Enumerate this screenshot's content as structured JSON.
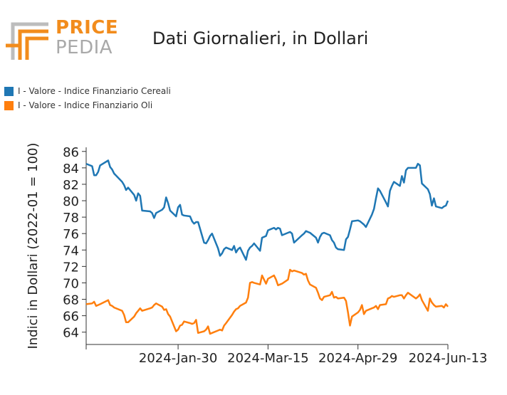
{
  "logo": {
    "word1": "PRICE",
    "word2": "PEDIA"
  },
  "title": "Dati Giornalieri, in Dollari",
  "legend": [
    {
      "label": "I - Valore - Indice Finanziario Cereali",
      "color": "#1f77b4"
    },
    {
      "label": "I - Valore - Indice Finanziario Oli",
      "color": "#ff7f0e"
    }
  ],
  "chart_data": {
    "type": "line",
    "ylabel": "Indici in Dollari (2022-01 = 100)",
    "xlabel": "",
    "ylim": [
      62.5,
      86.5
    ],
    "yticks": [
      64,
      66,
      68,
      70,
      72,
      74,
      76,
      78,
      80,
      82,
      84,
      86
    ],
    "xlim": [
      "2023-12-15",
      "2024-06-13"
    ],
    "xticks": [
      "2024-Jan-30",
      "2024-Mar-15",
      "2024-Apr-29",
      "2024-Jun-13"
    ],
    "xtick_dates": [
      "2024-01-30",
      "2024-03-15",
      "2024-04-29",
      "2024-06-13"
    ],
    "grid": false,
    "legend_position": "top-left",
    "series": [
      {
        "name": "I - Valore - Indice Finanziario Cereali",
        "color": "#1f77b4",
        "x": [
          "2023-12-15",
          "2023-12-18",
          "2023-12-19",
          "2023-12-20",
          "2023-12-21",
          "2023-12-22",
          "2023-12-26",
          "2023-12-27",
          "2023-12-28",
          "2023-12-29",
          "2024-01-02",
          "2024-01-03",
          "2024-01-04",
          "2024-01-05",
          "2024-01-08",
          "2024-01-09",
          "2024-01-10",
          "2024-01-11",
          "2024-01-12",
          "2024-01-16",
          "2024-01-17",
          "2024-01-18",
          "2024-01-19",
          "2024-01-22",
          "2024-01-23",
          "2024-01-24",
          "2024-01-25",
          "2024-01-26",
          "2024-01-29",
          "2024-01-30",
          "2024-01-31",
          "2024-02-01",
          "2024-02-02",
          "2024-02-05",
          "2024-02-06",
          "2024-02-07",
          "2024-02-08",
          "2024-02-09",
          "2024-02-12",
          "2024-02-13",
          "2024-02-14",
          "2024-02-15",
          "2024-02-16",
          "2024-02-19",
          "2024-02-20",
          "2024-02-21",
          "2024-02-22",
          "2024-02-23",
          "2024-02-26",
          "2024-02-27",
          "2024-02-28",
          "2024-02-29",
          "2024-03-01",
          "2024-03-04",
          "2024-03-05",
          "2024-03-06",
          "2024-03-07",
          "2024-03-08",
          "2024-03-11",
          "2024-03-12",
          "2024-03-13",
          "2024-03-14",
          "2024-03-15",
          "2024-03-18",
          "2024-03-19",
          "2024-03-20",
          "2024-03-21",
          "2024-03-22",
          "2024-03-25",
          "2024-03-26",
          "2024-03-27",
          "2024-03-28",
          "2024-04-01",
          "2024-04-02",
          "2024-04-03",
          "2024-04-04",
          "2024-04-05",
          "2024-04-08",
          "2024-04-09",
          "2024-04-10",
          "2024-04-11",
          "2024-04-12",
          "2024-04-15",
          "2024-04-16",
          "2024-04-17",
          "2024-04-18",
          "2024-04-19",
          "2024-04-22",
          "2024-04-23",
          "2024-04-24",
          "2024-04-25",
          "2024-04-26",
          "2024-04-29",
          "2024-04-30",
          "2024-05-01",
          "2024-05-02",
          "2024-05-03",
          "2024-05-06",
          "2024-05-07",
          "2024-05-08",
          "2024-05-09",
          "2024-05-10",
          "2024-05-13",
          "2024-05-14",
          "2024-05-15",
          "2024-05-16",
          "2024-05-17",
          "2024-05-20",
          "2024-05-21",
          "2024-05-22",
          "2024-05-23",
          "2024-05-24",
          "2024-05-28",
          "2024-05-29",
          "2024-05-30",
          "2024-05-31",
          "2024-06-03",
          "2024-06-04",
          "2024-06-05",
          "2024-06-06",
          "2024-06-07",
          "2024-06-10",
          "2024-06-11",
          "2024-06-12",
          "2024-06-13"
        ],
        "values": [
          84.5,
          84.2,
          83.1,
          83.1,
          83.5,
          84.3,
          84.9,
          84.1,
          83.8,
          83.3,
          82.3,
          81.9,
          81.3,
          81.6,
          80.7,
          80.0,
          80.9,
          80.6,
          78.8,
          78.7,
          78.5,
          77.9,
          78.5,
          78.9,
          79.2,
          80.4,
          79.7,
          78.8,
          78.1,
          79.2,
          79.5,
          78.3,
          78.2,
          78.1,
          77.5,
          77.2,
          77.4,
          77.4,
          74.9,
          74.8,
          75.2,
          75.7,
          76.0,
          74.2,
          73.3,
          73.6,
          74.1,
          74.3,
          74.0,
          74.5,
          73.7,
          74.1,
          74.3,
          72.8,
          73.9,
          74.3,
          74.5,
          74.8,
          73.9,
          75.5,
          75.6,
          75.7,
          76.4,
          76.7,
          76.5,
          76.7,
          76.6,
          75.8,
          76.1,
          76.2,
          76.0,
          74.9,
          75.8,
          76.0,
          76.3,
          76.2,
          76.1,
          75.5,
          74.9,
          75.6,
          76.0,
          76.1,
          75.8,
          75.2,
          74.9,
          74.3,
          74.1,
          74.0,
          75.3,
          75.6,
          76.5,
          77.5,
          77.6,
          77.5,
          77.3,
          77.1,
          76.8,
          78.3,
          79.0,
          80.3,
          81.5,
          81.2,
          79.8,
          79.3,
          81.2,
          81.8,
          82.3,
          81.8,
          83.0,
          82.2,
          83.7,
          84.0,
          84.0,
          84.5,
          84.3,
          82.1,
          81.4,
          80.8,
          79.4,
          80.3,
          79.3,
          79.1,
          79.3,
          79.4,
          80.0
        ]
      },
      {
        "name": "I - Valore - Indice Finanziario Oli",
        "color": "#ff7f0e",
        "x": [
          "2023-12-15",
          "2023-12-18",
          "2023-12-19",
          "2023-12-20",
          "2023-12-21",
          "2023-12-22",
          "2023-12-26",
          "2023-12-27",
          "2023-12-28",
          "2023-12-29",
          "2024-01-02",
          "2024-01-03",
          "2024-01-04",
          "2024-01-05",
          "2024-01-08",
          "2024-01-09",
          "2024-01-10",
          "2024-01-11",
          "2024-01-12",
          "2024-01-16",
          "2024-01-17",
          "2024-01-18",
          "2024-01-19",
          "2024-01-22",
          "2024-01-23",
          "2024-01-24",
          "2024-01-25",
          "2024-01-26",
          "2024-01-29",
          "2024-01-30",
          "2024-01-31",
          "2024-02-01",
          "2024-02-02",
          "2024-02-05",
          "2024-02-06",
          "2024-02-07",
          "2024-02-08",
          "2024-02-09",
          "2024-02-12",
          "2024-02-13",
          "2024-02-14",
          "2024-02-15",
          "2024-02-16",
          "2024-02-19",
          "2024-02-20",
          "2024-02-21",
          "2024-02-22",
          "2024-02-23",
          "2024-02-26",
          "2024-02-27",
          "2024-02-28",
          "2024-02-29",
          "2024-03-01",
          "2024-03-04",
          "2024-03-05",
          "2024-03-06",
          "2024-03-07",
          "2024-03-08",
          "2024-03-11",
          "2024-03-12",
          "2024-03-13",
          "2024-03-14",
          "2024-03-15",
          "2024-03-18",
          "2024-03-19",
          "2024-03-20",
          "2024-03-21",
          "2024-03-22",
          "2024-03-25",
          "2024-03-26",
          "2024-03-27",
          "2024-03-28",
          "2024-04-01",
          "2024-04-02",
          "2024-04-03",
          "2024-04-04",
          "2024-04-05",
          "2024-04-08",
          "2024-04-09",
          "2024-04-10",
          "2024-04-11",
          "2024-04-12",
          "2024-04-15",
          "2024-04-16",
          "2024-04-17",
          "2024-04-18",
          "2024-04-19",
          "2024-04-22",
          "2024-04-23",
          "2024-04-24",
          "2024-04-25",
          "2024-04-26",
          "2024-04-29",
          "2024-04-30",
          "2024-05-01",
          "2024-05-02",
          "2024-05-03",
          "2024-05-06",
          "2024-05-07",
          "2024-05-08",
          "2024-05-09",
          "2024-05-10",
          "2024-05-13",
          "2024-05-14",
          "2024-05-15",
          "2024-05-16",
          "2024-05-17",
          "2024-05-20",
          "2024-05-21",
          "2024-05-22",
          "2024-05-23",
          "2024-05-24",
          "2024-05-28",
          "2024-05-29",
          "2024-05-30",
          "2024-05-31",
          "2024-06-03",
          "2024-06-04",
          "2024-06-05",
          "2024-06-06",
          "2024-06-07",
          "2024-06-10",
          "2024-06-11",
          "2024-06-12",
          "2024-06-13"
        ],
        "values": [
          67.4,
          67.5,
          67.7,
          67.2,
          67.3,
          67.4,
          67.9,
          67.3,
          67.2,
          67.0,
          66.6,
          66.1,
          65.2,
          65.2,
          65.9,
          66.3,
          66.6,
          66.9,
          66.6,
          66.9,
          67.0,
          67.3,
          67.5,
          67.1,
          66.7,
          66.8,
          66.2,
          65.9,
          64.1,
          64.3,
          64.8,
          64.9,
          65.3,
          65.1,
          65.0,
          65.1,
          65.5,
          63.9,
          64.1,
          64.3,
          64.7,
          63.8,
          63.9,
          64.2,
          64.3,
          64.2,
          64.8,
          65.1,
          66.1,
          66.5,
          66.8,
          66.9,
          67.2,
          67.6,
          68.2,
          70.0,
          70.1,
          70.0,
          69.8,
          70.9,
          70.4,
          69.9,
          70.5,
          70.9,
          70.4,
          69.7,
          69.8,
          69.9,
          70.4,
          71.6,
          71.4,
          71.5,
          71.2,
          71.0,
          71.1,
          70.3,
          69.8,
          69.4,
          68.8,
          68.1,
          67.9,
          68.3,
          68.5,
          68.9,
          68.2,
          68.3,
          68.1,
          68.2,
          67.8,
          66.4,
          64.8,
          65.9,
          66.4,
          66.7,
          67.3,
          66.2,
          66.6,
          66.9,
          67.0,
          67.2,
          66.8,
          67.3,
          67.4,
          68.1,
          68.2,
          68.4,
          68.3,
          68.5,
          68.5,
          68.1,
          68.5,
          68.8,
          68.1,
          68.3,
          68.6,
          67.9,
          66.6,
          68.1,
          67.6,
          67.3,
          67.1,
          67.2,
          67.0,
          67.4,
          67.1
        ]
      }
    ]
  }
}
